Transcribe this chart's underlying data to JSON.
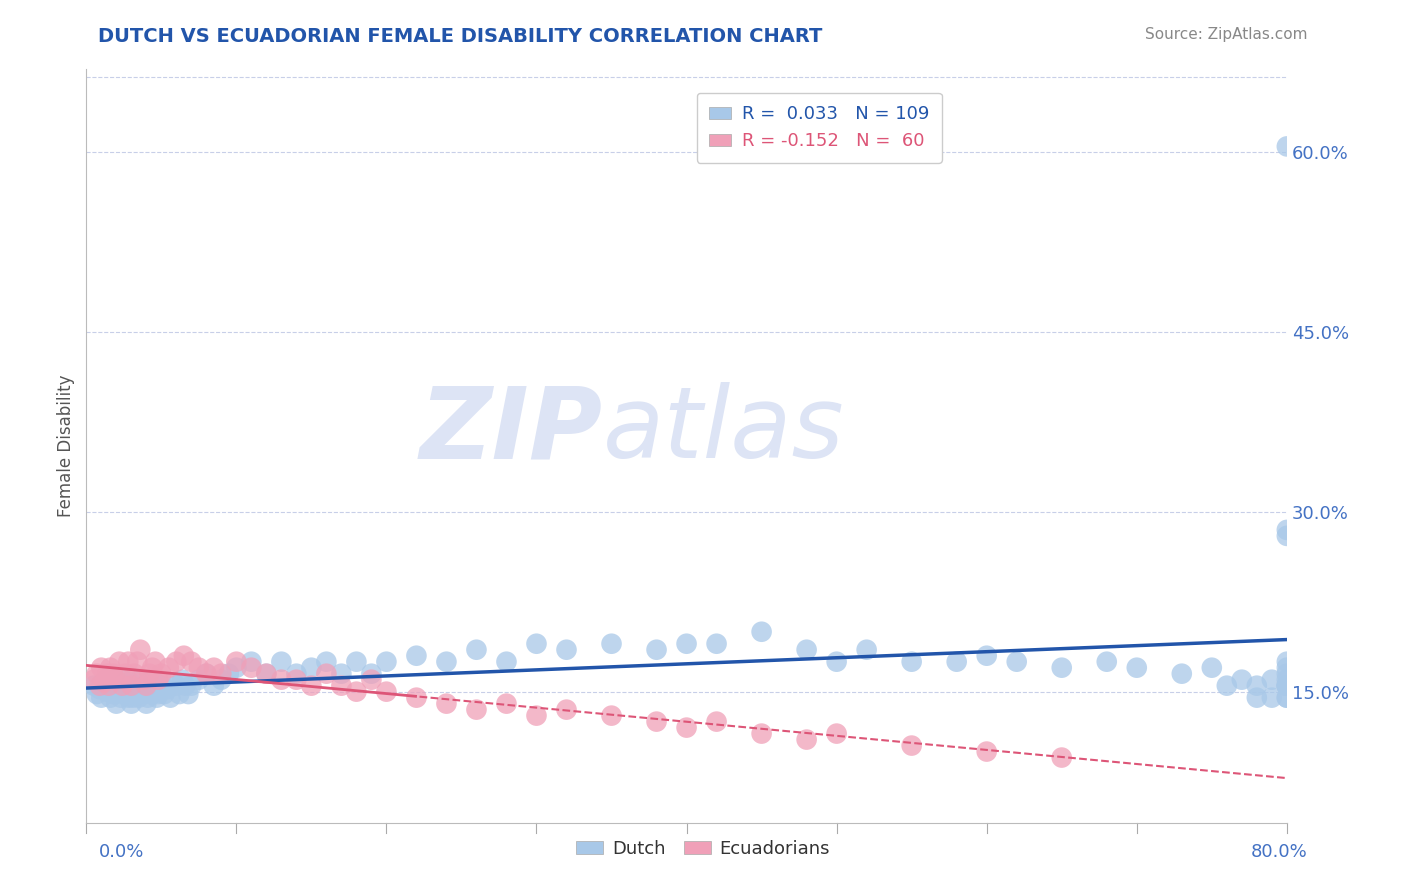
{
  "title": "DUTCH VS ECUADORIAN FEMALE DISABILITY CORRELATION CHART",
  "source": "Source: ZipAtlas.com",
  "ylabel": "Female Disability",
  "xmin": 0.0,
  "xmax": 0.8,
  "ymin": 0.04,
  "ymax": 0.67,
  "dutch_R": 0.033,
  "dutch_N": 109,
  "ecuadorian_R": -0.152,
  "ecuadorian_N": 60,
  "dutch_color": "#a8c8e8",
  "ecuadorian_color": "#f0a0b8",
  "dutch_line_color": "#2255aa",
  "ecuadorian_line_color": "#dd5577",
  "title_color": "#2255aa",
  "axis_label_color": "#4472c4",
  "grid_color": "#c8cfe8",
  "watermark_color": "#dde4f5",
  "dutch_x": [
    0.005,
    0.007,
    0.009,
    0.01,
    0.012,
    0.014,
    0.015,
    0.016,
    0.017,
    0.018,
    0.019,
    0.02,
    0.021,
    0.022,
    0.023,
    0.024,
    0.025,
    0.026,
    0.027,
    0.028,
    0.029,
    0.03,
    0.031,
    0.032,
    0.033,
    0.034,
    0.035,
    0.036,
    0.037,
    0.038,
    0.039,
    0.04,
    0.041,
    0.042,
    0.043,
    0.044,
    0.045,
    0.046,
    0.047,
    0.048,
    0.05,
    0.052,
    0.054,
    0.056,
    0.058,
    0.06,
    0.062,
    0.064,
    0.066,
    0.068,
    0.07,
    0.075,
    0.08,
    0.085,
    0.09,
    0.095,
    0.1,
    0.11,
    0.12,
    0.13,
    0.14,
    0.15,
    0.16,
    0.17,
    0.18,
    0.19,
    0.2,
    0.22,
    0.24,
    0.26,
    0.28,
    0.3,
    0.32,
    0.35,
    0.38,
    0.4,
    0.42,
    0.45,
    0.48,
    0.5,
    0.52,
    0.55,
    0.58,
    0.6,
    0.62,
    0.65,
    0.68,
    0.7,
    0.73,
    0.75,
    0.76,
    0.77,
    0.78,
    0.78,
    0.79,
    0.79,
    0.8,
    0.8,
    0.8,
    0.8,
    0.8,
    0.8,
    0.8,
    0.8,
    0.8,
    0.8,
    0.8,
    0.8,
    0.8
  ],
  "dutch_y": [
    0.155,
    0.148,
    0.152,
    0.145,
    0.158,
    0.15,
    0.162,
    0.145,
    0.155,
    0.148,
    0.152,
    0.14,
    0.155,
    0.15,
    0.145,
    0.16,
    0.148,
    0.155,
    0.152,
    0.145,
    0.158,
    0.14,
    0.145,
    0.155,
    0.148,
    0.15,
    0.145,
    0.16,
    0.152,
    0.148,
    0.155,
    0.14,
    0.145,
    0.152,
    0.155,
    0.148,
    0.15,
    0.158,
    0.145,
    0.148,
    0.155,
    0.148,
    0.152,
    0.145,
    0.158,
    0.155,
    0.148,
    0.16,
    0.155,
    0.148,
    0.155,
    0.16,
    0.165,
    0.155,
    0.16,
    0.165,
    0.17,
    0.175,
    0.165,
    0.175,
    0.165,
    0.17,
    0.175,
    0.165,
    0.175,
    0.165,
    0.175,
    0.18,
    0.175,
    0.185,
    0.175,
    0.19,
    0.185,
    0.19,
    0.185,
    0.19,
    0.19,
    0.2,
    0.185,
    0.175,
    0.185,
    0.175,
    0.175,
    0.18,
    0.175,
    0.17,
    0.175,
    0.17,
    0.165,
    0.17,
    0.155,
    0.16,
    0.145,
    0.155,
    0.145,
    0.16,
    0.145,
    0.155,
    0.175,
    0.285,
    0.155,
    0.165,
    0.145,
    0.28,
    0.155,
    0.17,
    0.16,
    0.155,
    0.605
  ],
  "ecuadorian_x": [
    0.005,
    0.007,
    0.009,
    0.01,
    0.012,
    0.014,
    0.015,
    0.016,
    0.018,
    0.02,
    0.022,
    0.024,
    0.026,
    0.028,
    0.03,
    0.032,
    0.034,
    0.036,
    0.038,
    0.04,
    0.042,
    0.044,
    0.046,
    0.048,
    0.05,
    0.055,
    0.06,
    0.065,
    0.07,
    0.075,
    0.08,
    0.085,
    0.09,
    0.1,
    0.11,
    0.12,
    0.13,
    0.14,
    0.15,
    0.16,
    0.17,
    0.18,
    0.19,
    0.2,
    0.22,
    0.24,
    0.26,
    0.28,
    0.3,
    0.32,
    0.35,
    0.38,
    0.4,
    0.42,
    0.45,
    0.48,
    0.5,
    0.55,
    0.6,
    0.65
  ],
  "ecuadorian_y": [
    0.16,
    0.165,
    0.155,
    0.17,
    0.158,
    0.165,
    0.155,
    0.17,
    0.165,
    0.16,
    0.175,
    0.155,
    0.165,
    0.175,
    0.155,
    0.165,
    0.175,
    0.185,
    0.16,
    0.155,
    0.165,
    0.17,
    0.175,
    0.16,
    0.165,
    0.17,
    0.175,
    0.18,
    0.175,
    0.17,
    0.165,
    0.17,
    0.165,
    0.175,
    0.17,
    0.165,
    0.16,
    0.16,
    0.155,
    0.165,
    0.155,
    0.15,
    0.16,
    0.15,
    0.145,
    0.14,
    0.135,
    0.14,
    0.13,
    0.135,
    0.13,
    0.125,
    0.12,
    0.125,
    0.115,
    0.11,
    0.115,
    0.105,
    0.1,
    0.095
  ]
}
